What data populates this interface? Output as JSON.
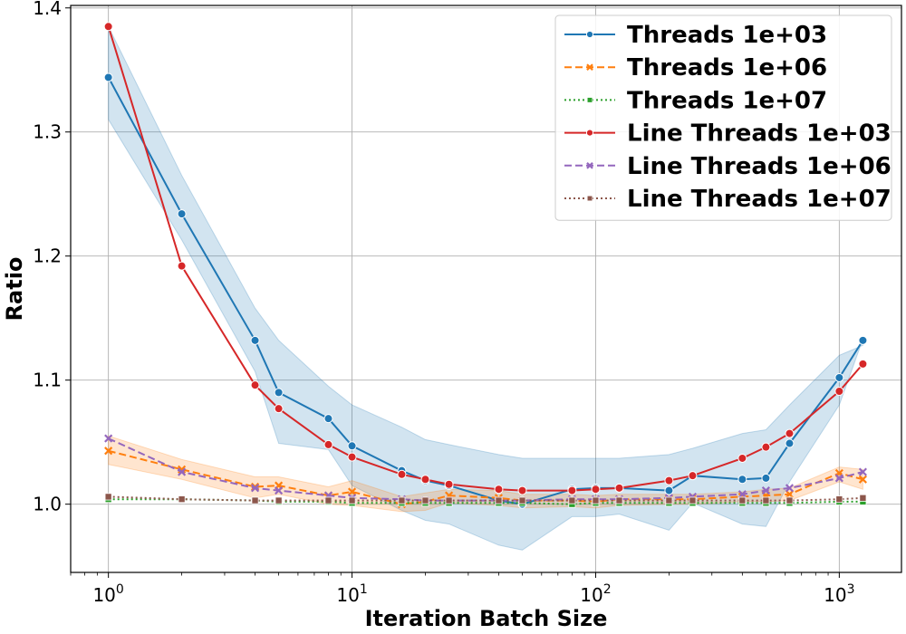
{
  "chart_data": {
    "type": "line",
    "title": "",
    "xlabel": "Iteration Batch Size",
    "ylabel": "Ratio",
    "xscale": "log",
    "xlim": [
      0.7,
      1800
    ],
    "ylim": [
      0.945,
      1.402
    ],
    "xticks": [
      {
        "value": 1,
        "base": "10",
        "exp": "0"
      },
      {
        "value": 10,
        "base": "10",
        "exp": "1"
      },
      {
        "value": 100,
        "base": "10",
        "exp": "2"
      },
      {
        "value": 1000,
        "base": "10",
        "exp": "3"
      }
    ],
    "yticks": [
      {
        "value": 1.0,
        "label": "1.0"
      },
      {
        "value": 1.1,
        "label": "1.1"
      },
      {
        "value": 1.2,
        "label": "1.2"
      },
      {
        "value": 1.3,
        "label": "1.3"
      },
      {
        "value": 1.4,
        "label": "1.4"
      }
    ],
    "grid": true,
    "legend_position": "top-right",
    "x": [
      1,
      2,
      4,
      5,
      8,
      10,
      16,
      20,
      25,
      40,
      50,
      80,
      100,
      125,
      200,
      250,
      400,
      500,
      625,
      1000,
      1250
    ],
    "series": [
      {
        "name": "Threads 1e+03",
        "color": "#1f77b4",
        "dash": "solid",
        "marker": "circle",
        "values": [
          1.344,
          1.234,
          1.132,
          1.09,
          1.069,
          1.047,
          1.027,
          1.019,
          1.015,
          1.003,
          1.0,
          1.012,
          1.013,
          1.013,
          1.011,
          1.023,
          1.02,
          1.021,
          1.049,
          1.102,
          1.132
        ],
        "band_upper": [
          1.385,
          1.265,
          1.158,
          1.132,
          1.095,
          1.08,
          1.062,
          1.052,
          1.048,
          1.04,
          1.037,
          1.037,
          1.037,
          1.037,
          1.04,
          1.045,
          1.057,
          1.06,
          1.08,
          1.12,
          1.128
        ],
        "band_lower": [
          1.31,
          1.213,
          1.107,
          1.049,
          1.044,
          1.015,
          0.995,
          0.987,
          0.984,
          0.967,
          0.963,
          0.99,
          0.99,
          0.992,
          0.979,
          1.001,
          0.984,
          0.982,
          1.018,
          1.08,
          1.133
        ]
      },
      {
        "name": "Threads 1e+06",
        "color": "#ff7f0e",
        "dash": "dashed",
        "marker": "x",
        "values": [
          1.043,
          1.028,
          1.014,
          1.015,
          1.007,
          1.01,
          1.0,
          1.002,
          1.007,
          1.005,
          1.003,
          1.003,
          1.002,
          1.004,
          1.004,
          1.004,
          1.006,
          1.007,
          1.008,
          1.025,
          1.02
        ],
        "band_upper": [
          1.055,
          1.036,
          1.022,
          1.022,
          1.014,
          1.019,
          1.006,
          1.009,
          1.012,
          1.011,
          1.008,
          1.008,
          1.007,
          1.008,
          1.008,
          1.008,
          1.01,
          1.012,
          1.013,
          1.03,
          1.028
        ],
        "band_lower": [
          1.032,
          1.02,
          1.005,
          1.008,
          1.0,
          0.999,
          0.994,
          0.995,
          1.001,
          0.999,
          0.997,
          0.998,
          0.997,
          0.999,
          1.0,
          1.0,
          1.002,
          1.002,
          1.003,
          1.018,
          1.012
        ]
      },
      {
        "name": "Threads 1e+07",
        "color": "#2ca02c",
        "dash": "dotted",
        "marker": "square",
        "values": [
          1.004,
          1.004,
          1.003,
          1.002,
          1.002,
          1.001,
          1.001,
          1.001,
          1.001,
          1.001,
          1.001,
          1.0,
          1.001,
          1.001,
          1.001,
          1.001,
          1.001,
          1.001,
          1.001,
          1.002,
          1.002
        ]
      },
      {
        "name": "Line Threads 1e+03",
        "color": "#d62728",
        "dash": "solid",
        "marker": "circle",
        "values": [
          1.385,
          1.192,
          1.096,
          1.077,
          1.048,
          1.038,
          1.024,
          1.02,
          1.016,
          1.012,
          1.011,
          1.011,
          1.012,
          1.013,
          1.019,
          1.023,
          1.037,
          1.046,
          1.057,
          1.091,
          1.113
        ]
      },
      {
        "name": "Line Threads 1e+06",
        "color": "#9467bd",
        "dash": "dashed",
        "marker": "x",
        "values": [
          1.053,
          1.026,
          1.013,
          1.011,
          1.007,
          1.005,
          1.004,
          1.003,
          1.003,
          1.003,
          1.003,
          1.004,
          1.004,
          1.004,
          1.005,
          1.006,
          1.008,
          1.011,
          1.013,
          1.021,
          1.026
        ]
      },
      {
        "name": "Line Threads 1e+07",
        "color": "#8c564b",
        "dash": "dotted",
        "marker": "square",
        "values": [
          1.006,
          1.004,
          1.003,
          1.003,
          1.003,
          1.003,
          1.003,
          1.003,
          1.003,
          1.003,
          1.003,
          1.003,
          1.003,
          1.003,
          1.003,
          1.003,
          1.003,
          1.003,
          1.003,
          1.004,
          1.005
        ]
      }
    ]
  }
}
